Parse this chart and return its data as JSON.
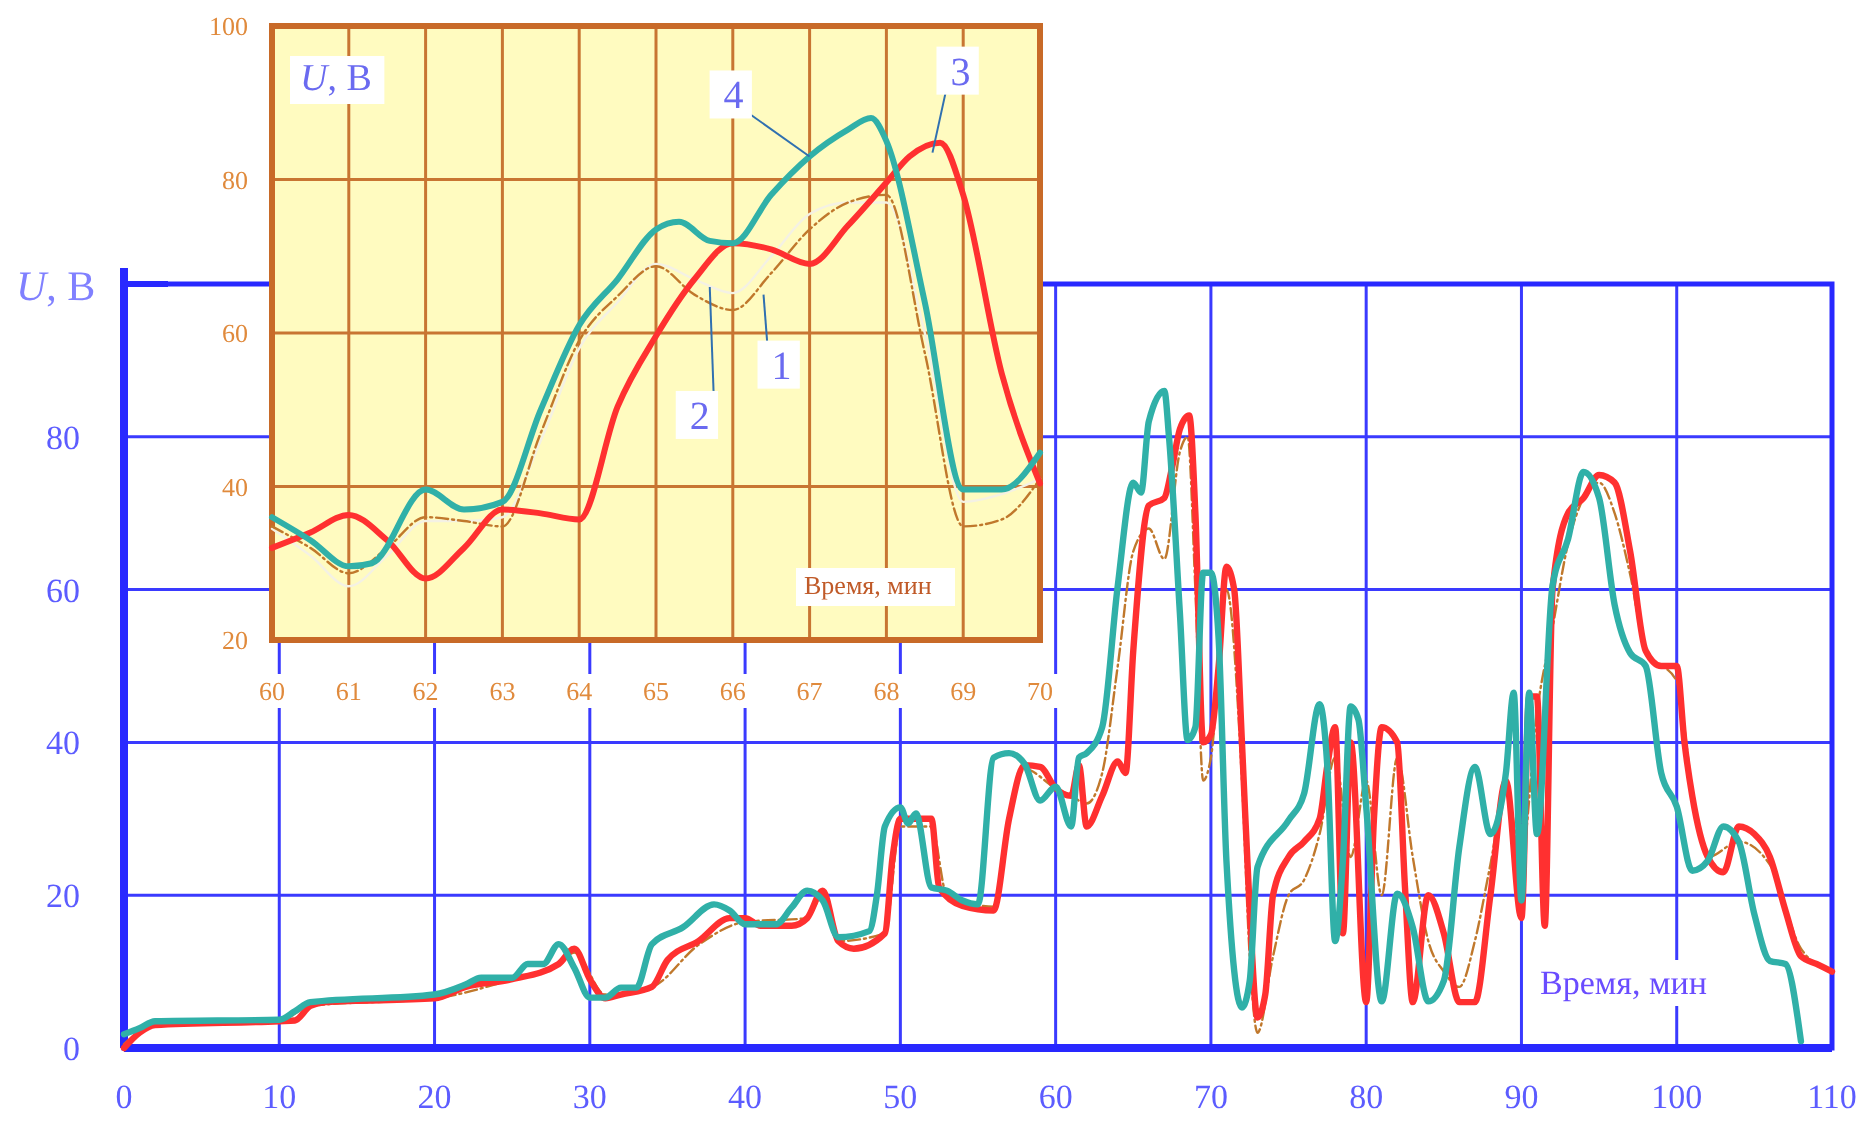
{
  "chart_data": [
    {
      "type": "line",
      "xlabel": "Время, мин",
      "ylabel": "U, В",
      "xlim": [
        0,
        110
      ],
      "ylim": [
        0,
        100
      ],
      "xticks": [
        0,
        10,
        20,
        30,
        40,
        50,
        60,
        70,
        80,
        90,
        100,
        110
      ],
      "yticks": [
        0,
        20,
        40,
        60,
        80,
        {
          "value": 100,
          "label": null
        }
      ],
      "grid": true,
      "series": [
        {
          "color": "#c0782c",
          "line_style": "dashed",
          "x": [
            0,
            2,
            10,
            12,
            20,
            25,
            28,
            29,
            31,
            34,
            37,
            40,
            44,
            45,
            46,
            49,
            50,
            52,
            53,
            56,
            57,
            58,
            60,
            61,
            62,
            63,
            64,
            65,
            66,
            67,
            68,
            68.5,
            69,
            69.5,
            70,
            71,
            72,
            72.5,
            73,
            74,
            75,
            76,
            77,
            78,
            79,
            80,
            81,
            82,
            83,
            84,
            85,
            86,
            87,
            88,
            89,
            90,
            91,
            92,
            93,
            94,
            95,
            96,
            97,
            98,
            100,
            101,
            102,
            104,
            106,
            108,
            110
          ],
          "values": [
            0.5,
            3,
            3.5,
            5.5,
            6.5,
            9,
            11,
            12.5,
            7,
            8,
            13.5,
            16.5,
            17,
            20,
            14,
            15,
            29,
            29,
            20,
            18.5,
            30,
            36.5,
            34,
            33,
            32,
            36,
            50,
            65,
            68,
            64,
            78,
            80,
            60,
            35,
            38,
            60,
            35,
            12,
            2,
            12,
            20,
            22,
            28,
            38,
            25,
            35,
            20,
            38,
            25,
            14,
            10,
            8,
            14,
            24,
            34,
            25,
            44,
            55,
            66,
            72,
            74,
            70,
            62,
            52,
            48,
            34,
            25,
            27,
            24,
            13,
            10
          ]
        },
        {
          "color": "#ff3030",
          "x": [
            0,
            1,
            2,
            10,
            11,
            12,
            13,
            20,
            22,
            25,
            28,
            29,
            30,
            31,
            32,
            34,
            35,
            37,
            39,
            40,
            41,
            43,
            44,
            45,
            46,
            47,
            49,
            49.5,
            50,
            52,
            52.5,
            54,
            56,
            57,
            58,
            59,
            60,
            61,
            61.5,
            62,
            63,
            64,
            64.5,
            65,
            66,
            67,
            67.5,
            68,
            68.6,
            69,
            69.5,
            70,
            70.5,
            71,
            71.5,
            72,
            72.5,
            73,
            73.5,
            74,
            75,
            76,
            77,
            77.5,
            78,
            78.5,
            79,
            80,
            80.5,
            81,
            82,
            82.5,
            83,
            84,
            85,
            86,
            87,
            88,
            89,
            90,
            90.5,
            91,
            91.5,
            92,
            93,
            94,
            95,
            96,
            97,
            98,
            99,
            100,
            100.5,
            101,
            102,
            103,
            104,
            105,
            106,
            107,
            108,
            109,
            110
          ],
          "values": [
            0,
            2,
            3,
            3.5,
            3.6,
            5.5,
            6,
            6.5,
            8,
            9,
            11,
            13,
            9,
            6.5,
            7,
            8,
            11.5,
            14,
            17,
            17,
            16,
            16,
            17,
            20.6,
            14,
            13,
            15,
            25,
            30,
            30,
            21,
            18.6,
            18,
            30,
            37,
            36.8,
            34,
            33,
            37,
            29,
            33,
            37.5,
            36,
            52,
            71,
            72,
            76,
            81,
            82.8,
            70,
            40,
            41,
            50,
            63,
            60,
            40,
            18,
            4,
            7,
            20,
            25,
            27,
            30,
            37,
            42,
            15,
            40,
            6,
            30,
            42,
            40,
            21,
            6,
            20,
            15,
            6,
            6,
            20,
            35,
            17,
            46,
            46,
            16,
            60,
            70,
            72,
            75,
            74,
            65,
            52,
            50,
            50,
            40,
            33,
            25,
            23,
            29,
            28,
            25,
            18,
            12,
            11,
            10
          ]
        },
        {
          "color": "#30b0a8",
          "x": [
            0,
            1,
            2,
            10,
            11,
            12,
            20,
            22,
            23,
            25,
            26,
            27,
            28,
            29,
            30,
            31,
            32,
            33,
            34,
            36,
            38,
            39,
            40,
            42,
            43,
            44,
            45,
            46,
            48,
            48.5,
            49,
            50,
            50.5,
            51,
            52,
            53,
            54,
            55,
            56,
            57,
            58,
            59,
            60,
            61,
            61.5,
            62,
            63,
            64,
            65,
            65.5,
            66,
            67,
            67.3,
            68,
            68.5,
            69,
            69.5,
            70,
            70.5,
            71,
            72,
            72.5,
            73,
            75,
            76,
            77,
            77.5,
            78,
            78.5,
            79,
            79.5,
            80,
            81,
            82,
            83,
            84,
            85,
            86,
            87,
            88,
            89,
            89.5,
            90,
            90.5,
            91,
            92,
            93,
            94,
            95,
            96,
            97,
            98,
            99,
            100,
            101,
            102,
            103,
            104,
            105,
            106,
            107,
            108
          ],
          "values": [
            1.8,
            2.6,
            3.5,
            3.7,
            4.8,
            6,
            7,
            8.3,
            9.2,
            9.2,
            11,
            11,
            13.6,
            10.5,
            6.6,
            6.6,
            7.9,
            7.9,
            13.6,
            15.8,
            18.8,
            18,
            16.2,
            16.2,
            18.4,
            20.6,
            19.3,
            14.5,
            15.3,
            20.2,
            29,
            31.5,
            29.4,
            30.7,
            21,
            20.6,
            19.3,
            18.8,
            38,
            38.6,
            37.2,
            32.4,
            34.2,
            29,
            38,
            38.6,
            42,
            60.5,
            74,
            72.7,
            82,
            86,
            80,
            57,
            40.3,
            42,
            62.2,
            62.2,
            53.5,
            24.5,
            5.3,
            8.8,
            23.7,
            29.8,
            33.3,
            45,
            36.8,
            14,
            24.5,
            44.7,
            43,
            31.6,
            6.1,
            20.2,
            15.8,
            6.1,
            8.8,
            26.3,
            36.8,
            28,
            36,
            46.5,
            19.3,
            46.5,
            28,
            60.5,
            66.6,
            75.4,
            72,
            58,
            51.7,
            50,
            36,
            31.6,
            23.2,
            24.5,
            29,
            27,
            17.5,
            11.4,
            11,
            0.9
          ]
        }
      ]
    },
    {
      "type": "line",
      "xlabel": "Время, мин",
      "ylabel": "U, В",
      "xlim": [
        60,
        70
      ],
      "ylim": [
        20,
        100
      ],
      "xticks": [
        60,
        61,
        62,
        63,
        64,
        65,
        66,
        67,
        68,
        69,
        70
      ],
      "yticks": [
        20,
        40,
        60,
        80,
        100
      ],
      "grid": true,
      "annotations": [
        {
          "text": "1",
          "x": 66.4,
          "y": 65
        },
        {
          "text": "2",
          "x": 65.7,
          "y": 66
        },
        {
          "text": "3",
          "x": 68.6,
          "y": 83.5
        },
        {
          "text": "4",
          "x": 67,
          "y": 83
        }
      ],
      "series": [
        {
          "color": "#f4f1e4",
          "line_style": "solid",
          "x": [
            60,
            60.5,
            61,
            61.5,
            62,
            62.5,
            63,
            63.5,
            64,
            64.5,
            65,
            65.5,
            66,
            66.5,
            67,
            67.5,
            68,
            68.5,
            69,
            69.5,
            70
          ],
          "values": [
            34.5,
            31,
            27,
            31,
            35.5,
            35.5,
            36,
            46,
            58,
            64,
            69,
            67,
            65.2,
            70,
            75.5,
            77,
            77,
            60,
            38,
            39,
            41
          ]
        },
        {
          "color": "#c0782c",
          "line_style": "dashed",
          "x": [
            60,
            60.5,
            61,
            61.5,
            62,
            62.5,
            63,
            63.5,
            64,
            64.5,
            65,
            65.5,
            66,
            66.5,
            67,
            67.5,
            68,
            68.5,
            69,
            69.5,
            70
          ],
          "values": [
            34.8,
            32,
            28.7,
            32,
            36,
            35.5,
            34.8,
            47,
            59,
            64.8,
            68.7,
            65,
            63,
            67.8,
            73.5,
            77,
            78,
            57.4,
            34.8,
            35.7,
            41
          ]
        },
        {
          "color": "#ff3030",
          "x": [
            60,
            60.5,
            61,
            61.5,
            62,
            62.5,
            63,
            63.5,
            64,
            64.5,
            65,
            65.5,
            66,
            66.5,
            67,
            67.5,
            68,
            68.3,
            68.7,
            69,
            69.5,
            70
          ],
          "values": [
            32,
            34,
            36.3,
            33,
            28,
            32,
            37,
            36.5,
            35.7,
            50.4,
            59.6,
            67,
            71.7,
            70.9,
            69,
            74,
            79.6,
            83,
            84.8,
            78,
            54.8,
            40.4
          ]
        },
        {
          "color": "#30b0a8",
          "x": [
            60,
            60.5,
            61,
            61.3,
            62,
            62.5,
            63,
            63.5,
            64,
            64.5,
            65,
            65.3,
            65.7,
            66,
            66.5,
            67,
            67.5,
            67.8,
            68,
            68.5,
            69,
            69.5,
            70
          ],
          "values": [
            36,
            33,
            29.6,
            30,
            39.6,
            37,
            38,
            50,
            61,
            67,
            73.5,
            74.5,
            72,
            71.7,
            78,
            83,
            86.5,
            88,
            85,
            64,
            39.6,
            39.6,
            44.4
          ]
        }
      ]
    }
  ]
}
